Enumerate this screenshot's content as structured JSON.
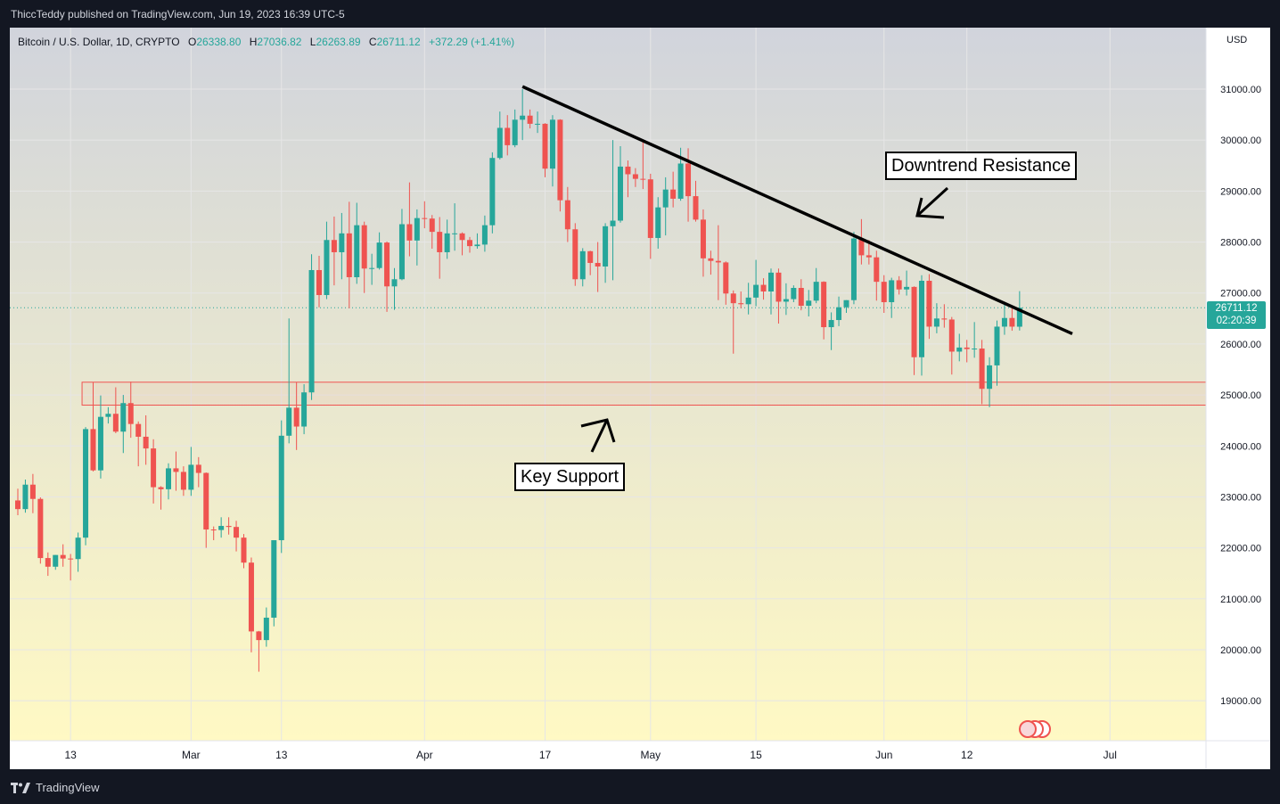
{
  "header": {
    "publisher_line": "ThiccTeddy published on TradingView.com, Jun 19, 2023 16:39 UTC-5"
  },
  "legend": {
    "symbol": "Bitcoin / U.S. Dollar, 1D, CRYPTO",
    "o_label": "O",
    "o_value": "26338.80",
    "h_label": "H",
    "h_value": "27036.82",
    "l_label": "L",
    "l_value": "26263.89",
    "c_label": "C",
    "c_value": "26711.12",
    "change": "+372.29 (+1.41%)"
  },
  "price_tag": {
    "price": "26711.12",
    "countdown": "02:20:39"
  },
  "footer": {
    "brand": "TradingView"
  },
  "annotations": {
    "resistance_label": "Downtrend Resistance",
    "support_label": "Key Support"
  },
  "colors": {
    "up": "#26a69a",
    "down": "#ef5350",
    "gradient_top": "#d1d4dc",
    "gradient_bottom": "#fff9c4",
    "support_zone": "#ef5350"
  },
  "chart_data": {
    "type": "candlestick",
    "currency_label": "USD",
    "y_ticks": [
      "31000.00",
      "30000.00",
      "29000.00",
      "28000.00",
      "27000.00",
      "26000.00",
      "25000.00",
      "24000.00",
      "23000.00",
      "22000.00",
      "21000.00",
      "20000.00",
      "19000.00"
    ],
    "x_ticks": [
      {
        "label": "13",
        "date": "2023-02-13"
      },
      {
        "label": "Mar",
        "date": "2023-03-01"
      },
      {
        "label": "13",
        "date": "2023-03-13"
      },
      {
        "label": "Apr",
        "date": "2023-04-01"
      },
      {
        "label": "17",
        "date": "2023-04-17"
      },
      {
        "label": "May",
        "date": "2023-05-01"
      },
      {
        "label": "15",
        "date": "2023-05-15"
      },
      {
        "label": "Jun",
        "date": "2023-06-01"
      },
      {
        "label": "12",
        "date": "2023-06-12"
      },
      {
        "label": "Jul",
        "date": "2023-07-01"
      }
    ],
    "date_range": [
      "2023-02-06",
      "2023-07-02"
    ],
    "y_range": [
      18300,
      31800
    ],
    "last_price": 26711.12,
    "support_zone": [
      24800,
      25250
    ],
    "trendline": {
      "start": {
        "date": "2023-04-14",
        "price": 31050
      },
      "end": {
        "date": "2023-06-26",
        "price": 26200
      }
    },
    "ohlc": [
      {
        "date": "2023-02-06",
        "o": 22930,
        "h": 23160,
        "l": 22640,
        "c": 22760
      },
      {
        "date": "2023-02-07",
        "o": 22760,
        "h": 23340,
        "l": 22690,
        "c": 23240
      },
      {
        "date": "2023-02-08",
        "o": 23240,
        "h": 23450,
        "l": 22680,
        "c": 22960
      },
      {
        "date": "2023-02-09",
        "o": 22960,
        "h": 22990,
        "l": 21690,
        "c": 21800
      },
      {
        "date": "2023-02-10",
        "o": 21800,
        "h": 21910,
        "l": 21450,
        "c": 21630
      },
      {
        "date": "2023-02-11",
        "o": 21630,
        "h": 21860,
        "l": 21570,
        "c": 21860
      },
      {
        "date": "2023-02-12",
        "o": 21860,
        "h": 22070,
        "l": 21630,
        "c": 21790
      },
      {
        "date": "2023-02-13",
        "o": 21790,
        "h": 21880,
        "l": 21360,
        "c": 21780
      },
      {
        "date": "2023-02-14",
        "o": 21780,
        "h": 22300,
        "l": 21530,
        "c": 22200
      },
      {
        "date": "2023-02-15",
        "o": 22200,
        "h": 24370,
        "l": 22050,
        "c": 24330
      },
      {
        "date": "2023-02-16",
        "o": 24330,
        "h": 25250,
        "l": 23500,
        "c": 23520
      },
      {
        "date": "2023-02-17",
        "o": 23520,
        "h": 24990,
        "l": 23360,
        "c": 24570
      },
      {
        "date": "2023-02-18",
        "o": 24570,
        "h": 24760,
        "l": 24440,
        "c": 24630
      },
      {
        "date": "2023-02-19",
        "o": 24630,
        "h": 25150,
        "l": 24250,
        "c": 24280
      },
      {
        "date": "2023-02-20",
        "o": 24280,
        "h": 25000,
        "l": 23860,
        "c": 24840
      },
      {
        "date": "2023-02-21",
        "o": 24840,
        "h": 25260,
        "l": 24160,
        "c": 24430
      },
      {
        "date": "2023-02-22",
        "o": 24430,
        "h": 24480,
        "l": 23600,
        "c": 24180
      },
      {
        "date": "2023-02-23",
        "o": 24180,
        "h": 24600,
        "l": 23630,
        "c": 23950
      },
      {
        "date": "2023-02-24",
        "o": 23950,
        "h": 24130,
        "l": 22870,
        "c": 23190
      },
      {
        "date": "2023-02-25",
        "o": 23190,
        "h": 23210,
        "l": 22750,
        "c": 23150
      },
      {
        "date": "2023-02-26",
        "o": 23150,
        "h": 23660,
        "l": 22950,
        "c": 23560
      },
      {
        "date": "2023-02-27",
        "o": 23560,
        "h": 23890,
        "l": 23120,
        "c": 23490
      },
      {
        "date": "2023-02-28",
        "o": 23490,
        "h": 23600,
        "l": 23020,
        "c": 23140
      },
      {
        "date": "2023-03-01",
        "o": 23140,
        "h": 23980,
        "l": 23020,
        "c": 23630
      },
      {
        "date": "2023-03-02",
        "o": 23630,
        "h": 23780,
        "l": 23190,
        "c": 23470
      },
      {
        "date": "2023-03-03",
        "o": 23470,
        "h": 23480,
        "l": 22000,
        "c": 22360
      },
      {
        "date": "2023-03-04",
        "o": 22360,
        "h": 22420,
        "l": 22150,
        "c": 22350
      },
      {
        "date": "2023-03-05",
        "o": 22350,
        "h": 22600,
        "l": 22200,
        "c": 22430
      },
      {
        "date": "2023-03-06",
        "o": 22430,
        "h": 22600,
        "l": 22260,
        "c": 22410
      },
      {
        "date": "2023-03-07",
        "o": 22410,
        "h": 22530,
        "l": 21930,
        "c": 22200
      },
      {
        "date": "2023-03-08",
        "o": 22200,
        "h": 22270,
        "l": 21600,
        "c": 21710
      },
      {
        "date": "2023-03-09",
        "o": 21710,
        "h": 21810,
        "l": 19950,
        "c": 20360
      },
      {
        "date": "2023-03-10",
        "o": 20360,
        "h": 20370,
        "l": 19570,
        "c": 20190
      },
      {
        "date": "2023-03-11",
        "o": 20190,
        "h": 20830,
        "l": 20060,
        "c": 20630
      },
      {
        "date": "2023-03-12",
        "o": 20630,
        "h": 22150,
        "l": 20460,
        "c": 22150
      },
      {
        "date": "2023-03-13",
        "o": 22150,
        "h": 24500,
        "l": 21900,
        "c": 24200
      },
      {
        "date": "2023-03-14",
        "o": 24200,
        "h": 26500,
        "l": 24050,
        "c": 24750
      },
      {
        "date": "2023-03-15",
        "o": 24750,
        "h": 25250,
        "l": 23920,
        "c": 24380
      },
      {
        "date": "2023-03-16",
        "o": 24380,
        "h": 25210,
        "l": 24230,
        "c": 25050
      },
      {
        "date": "2023-03-17",
        "o": 25050,
        "h": 27760,
        "l": 24900,
        "c": 27450
      },
      {
        "date": "2023-03-18",
        "o": 27450,
        "h": 27730,
        "l": 26720,
        "c": 26960
      },
      {
        "date": "2023-03-19",
        "o": 26960,
        "h": 28400,
        "l": 26880,
        "c": 28040
      },
      {
        "date": "2023-03-20",
        "o": 28040,
        "h": 28500,
        "l": 27150,
        "c": 27800
      },
      {
        "date": "2023-03-21",
        "o": 27800,
        "h": 28570,
        "l": 27270,
        "c": 28170
      },
      {
        "date": "2023-03-22",
        "o": 28170,
        "h": 28790,
        "l": 26700,
        "c": 27310
      },
      {
        "date": "2023-03-23",
        "o": 27310,
        "h": 28770,
        "l": 27180,
        "c": 28330
      },
      {
        "date": "2023-03-24",
        "o": 28330,
        "h": 28400,
        "l": 27000,
        "c": 27480
      },
      {
        "date": "2023-03-25",
        "o": 27480,
        "h": 27770,
        "l": 27160,
        "c": 27490
      },
      {
        "date": "2023-03-26",
        "o": 27490,
        "h": 28190,
        "l": 27460,
        "c": 27990
      },
      {
        "date": "2023-03-27",
        "o": 27990,
        "h": 28010,
        "l": 26630,
        "c": 27130
      },
      {
        "date": "2023-03-28",
        "o": 27130,
        "h": 27490,
        "l": 26670,
        "c": 27270
      },
      {
        "date": "2023-03-29",
        "o": 27270,
        "h": 28650,
        "l": 27250,
        "c": 28350
      },
      {
        "date": "2023-03-30",
        "o": 28350,
        "h": 29170,
        "l": 27720,
        "c": 28030
      },
      {
        "date": "2023-03-31",
        "o": 28030,
        "h": 28640,
        "l": 27540,
        "c": 28470
      },
      {
        "date": "2023-04-01",
        "o": 28470,
        "h": 28800,
        "l": 28270,
        "c": 28460
      },
      {
        "date": "2023-04-02",
        "o": 28460,
        "h": 28530,
        "l": 27870,
        "c": 28200
      },
      {
        "date": "2023-04-03",
        "o": 28200,
        "h": 28490,
        "l": 27280,
        "c": 27800
      },
      {
        "date": "2023-04-04",
        "o": 27800,
        "h": 28440,
        "l": 27670,
        "c": 28170
      },
      {
        "date": "2023-04-05",
        "o": 28170,
        "h": 28760,
        "l": 27830,
        "c": 28170
      },
      {
        "date": "2023-04-06",
        "o": 28170,
        "h": 28190,
        "l": 27740,
        "c": 28040
      },
      {
        "date": "2023-04-07",
        "o": 28040,
        "h": 28100,
        "l": 27790,
        "c": 27920
      },
      {
        "date": "2023-04-08",
        "o": 27920,
        "h": 28170,
        "l": 27870,
        "c": 27950
      },
      {
        "date": "2023-04-09",
        "o": 27950,
        "h": 28520,
        "l": 27810,
        "c": 28330
      },
      {
        "date": "2023-04-10",
        "o": 28330,
        "h": 29760,
        "l": 28170,
        "c": 29650
      },
      {
        "date": "2023-04-11",
        "o": 29650,
        "h": 30560,
        "l": 29620,
        "c": 30240
      },
      {
        "date": "2023-04-12",
        "o": 30240,
        "h": 30490,
        "l": 29700,
        "c": 29900
      },
      {
        "date": "2023-04-13",
        "o": 29900,
        "h": 30600,
        "l": 29860,
        "c": 30400
      },
      {
        "date": "2023-04-14",
        "o": 30400,
        "h": 31000,
        "l": 30000,
        "c": 30480
      },
      {
        "date": "2023-04-15",
        "o": 30480,
        "h": 30600,
        "l": 30230,
        "c": 30320
      },
      {
        "date": "2023-04-16",
        "o": 30320,
        "h": 30560,
        "l": 30140,
        "c": 30320
      },
      {
        "date": "2023-04-17",
        "o": 30320,
        "h": 30330,
        "l": 29270,
        "c": 29440
      },
      {
        "date": "2023-04-18",
        "o": 29440,
        "h": 30490,
        "l": 29090,
        "c": 30400
      },
      {
        "date": "2023-04-19",
        "o": 30400,
        "h": 30410,
        "l": 28600,
        "c": 28820
      },
      {
        "date": "2023-04-20",
        "o": 28820,
        "h": 29080,
        "l": 28000,
        "c": 28250
      },
      {
        "date": "2023-04-21",
        "o": 28250,
        "h": 28370,
        "l": 27140,
        "c": 27270
      },
      {
        "date": "2023-04-22",
        "o": 27270,
        "h": 27880,
        "l": 27130,
        "c": 27820
      },
      {
        "date": "2023-04-23",
        "o": 27820,
        "h": 27830,
        "l": 27350,
        "c": 27590
      },
      {
        "date": "2023-04-24",
        "o": 27590,
        "h": 28000,
        "l": 27020,
        "c": 27520
      },
      {
        "date": "2023-04-25",
        "o": 27520,
        "h": 28370,
        "l": 27200,
        "c": 28310
      },
      {
        "date": "2023-04-26",
        "o": 28310,
        "h": 30000,
        "l": 27250,
        "c": 28420
      },
      {
        "date": "2023-04-27",
        "o": 28420,
        "h": 29880,
        "l": 28380,
        "c": 29480
      },
      {
        "date": "2023-04-28",
        "o": 29480,
        "h": 29600,
        "l": 28880,
        "c": 29330
      },
      {
        "date": "2023-04-29",
        "o": 29330,
        "h": 29450,
        "l": 29080,
        "c": 29240
      },
      {
        "date": "2023-04-30",
        "o": 29240,
        "h": 29960,
        "l": 29040,
        "c": 29230
      },
      {
        "date": "2023-05-01",
        "o": 29230,
        "h": 29340,
        "l": 27670,
        "c": 28080
      },
      {
        "date": "2023-05-02",
        "o": 28080,
        "h": 28880,
        "l": 27870,
        "c": 28680
      },
      {
        "date": "2023-05-03",
        "o": 28680,
        "h": 29270,
        "l": 28130,
        "c": 29030
      },
      {
        "date": "2023-05-04",
        "o": 29030,
        "h": 29380,
        "l": 28680,
        "c": 28850
      },
      {
        "date": "2023-05-05",
        "o": 28850,
        "h": 29850,
        "l": 28810,
        "c": 29540
      },
      {
        "date": "2023-05-06",
        "o": 29540,
        "h": 29840,
        "l": 28400,
        "c": 28900
      },
      {
        "date": "2023-05-07",
        "o": 28900,
        "h": 29200,
        "l": 28400,
        "c": 28440
      },
      {
        "date": "2023-05-08",
        "o": 28440,
        "h": 28640,
        "l": 27320,
        "c": 27680
      },
      {
        "date": "2023-05-09",
        "o": 27680,
        "h": 27830,
        "l": 27360,
        "c": 27630
      },
      {
        "date": "2023-05-10",
        "o": 27630,
        "h": 28330,
        "l": 26860,
        "c": 27600
      },
      {
        "date": "2023-05-11",
        "o": 27600,
        "h": 27620,
        "l": 26770,
        "c": 26990
      },
      {
        "date": "2023-05-12",
        "o": 26990,
        "h": 27050,
        "l": 25810,
        "c": 26800
      },
      {
        "date": "2023-05-13",
        "o": 26800,
        "h": 27030,
        "l": 26700,
        "c": 26780
      },
      {
        "date": "2023-05-14",
        "o": 26780,
        "h": 27200,
        "l": 26580,
        "c": 26910
      },
      {
        "date": "2023-05-15",
        "o": 26910,
        "h": 27650,
        "l": 26740,
        "c": 27160
      },
      {
        "date": "2023-05-16",
        "o": 27160,
        "h": 27290,
        "l": 26870,
        "c": 27030
      },
      {
        "date": "2023-05-17",
        "o": 27030,
        "h": 27480,
        "l": 26580,
        "c": 27400
      },
      {
        "date": "2023-05-18",
        "o": 27400,
        "h": 27480,
        "l": 26400,
        "c": 26830
      },
      {
        "date": "2023-05-19",
        "o": 26830,
        "h": 27190,
        "l": 26570,
        "c": 26880
      },
      {
        "date": "2023-05-20",
        "o": 26880,
        "h": 27150,
        "l": 26820,
        "c": 27100
      },
      {
        "date": "2023-05-21",
        "o": 27100,
        "h": 27270,
        "l": 26660,
        "c": 26750
      },
      {
        "date": "2023-05-22",
        "o": 26750,
        "h": 27060,
        "l": 26540,
        "c": 26850
      },
      {
        "date": "2023-05-23",
        "o": 26850,
        "h": 27490,
        "l": 26800,
        "c": 27220
      },
      {
        "date": "2023-05-24",
        "o": 27220,
        "h": 27230,
        "l": 26090,
        "c": 26330
      },
      {
        "date": "2023-05-25",
        "o": 26330,
        "h": 26620,
        "l": 25880,
        "c": 26470
      },
      {
        "date": "2023-05-26",
        "o": 26470,
        "h": 26930,
        "l": 26350,
        "c": 26720
      },
      {
        "date": "2023-05-27",
        "o": 26720,
        "h": 26860,
        "l": 26610,
        "c": 26860
      },
      {
        "date": "2023-05-28",
        "o": 26860,
        "h": 28200,
        "l": 26780,
        "c": 28070
      },
      {
        "date": "2023-05-29",
        "o": 28070,
        "h": 28450,
        "l": 27560,
        "c": 27740
      },
      {
        "date": "2023-05-30",
        "o": 27740,
        "h": 28040,
        "l": 27560,
        "c": 27700
      },
      {
        "date": "2023-05-31",
        "o": 27700,
        "h": 27830,
        "l": 26850,
        "c": 27220
      },
      {
        "date": "2023-06-01",
        "o": 27220,
        "h": 27350,
        "l": 26610,
        "c": 26820
      },
      {
        "date": "2023-06-02",
        "o": 26820,
        "h": 27300,
        "l": 26510,
        "c": 27250
      },
      {
        "date": "2023-06-03",
        "o": 27250,
        "h": 27330,
        "l": 26970,
        "c": 27070
      },
      {
        "date": "2023-06-04",
        "o": 27070,
        "h": 27440,
        "l": 26950,
        "c": 27120
      },
      {
        "date": "2023-06-05",
        "o": 27120,
        "h": 27130,
        "l": 25390,
        "c": 25740
      },
      {
        "date": "2023-06-06",
        "o": 25740,
        "h": 27350,
        "l": 25380,
        "c": 27240
      },
      {
        "date": "2023-06-07",
        "o": 27240,
        "h": 27370,
        "l": 26100,
        "c": 26340
      },
      {
        "date": "2023-06-08",
        "o": 26340,
        "h": 26800,
        "l": 26210,
        "c": 26500
      },
      {
        "date": "2023-06-09",
        "o": 26500,
        "h": 26780,
        "l": 26320,
        "c": 26480
      },
      {
        "date": "2023-06-10",
        "o": 26480,
        "h": 26530,
        "l": 25400,
        "c": 25850
      },
      {
        "date": "2023-06-11",
        "o": 25850,
        "h": 26200,
        "l": 25660,
        "c": 25930
      },
      {
        "date": "2023-06-12",
        "o": 25930,
        "h": 26080,
        "l": 25640,
        "c": 25900
      },
      {
        "date": "2023-06-13",
        "o": 25900,
        "h": 26430,
        "l": 25730,
        "c": 25910
      },
      {
        "date": "2023-06-14",
        "o": 25910,
        "h": 26080,
        "l": 24820,
        "c": 25120
      },
      {
        "date": "2023-06-15",
        "o": 25120,
        "h": 25740,
        "l": 24760,
        "c": 25580
      },
      {
        "date": "2023-06-16",
        "o": 25580,
        "h": 26460,
        "l": 25180,
        "c": 26340
      },
      {
        "date": "2023-06-17",
        "o": 26340,
        "h": 26770,
        "l": 26180,
        "c": 26510
      },
      {
        "date": "2023-06-18",
        "o": 26510,
        "h": 26700,
        "l": 26260,
        "c": 26340
      },
      {
        "date": "2023-06-19",
        "o": 26338.8,
        "h": 27036.82,
        "l": 26263.89,
        "c": 26711.12
      }
    ]
  }
}
